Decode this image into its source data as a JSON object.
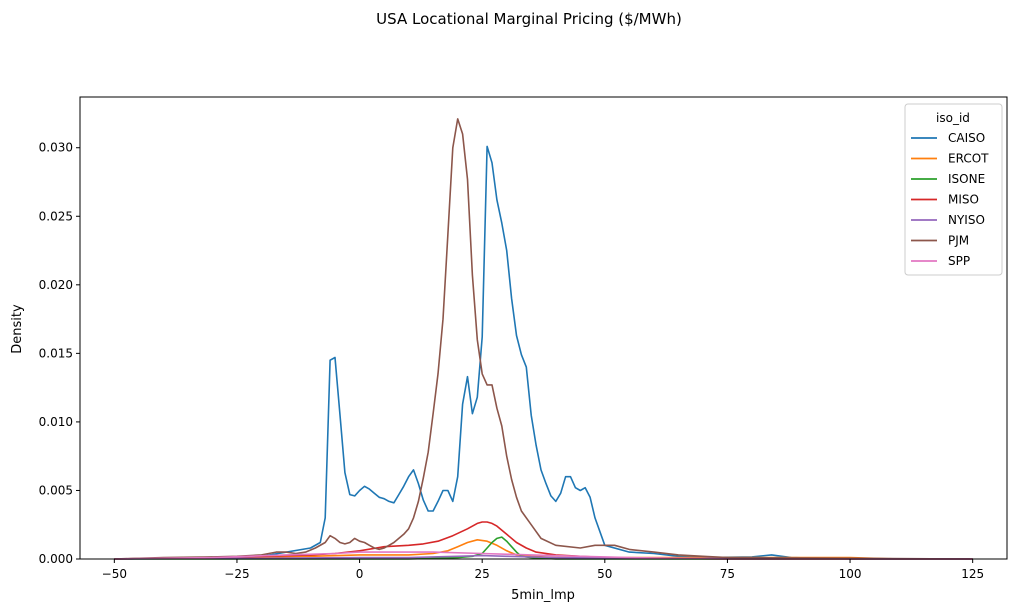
{
  "chart_data": {
    "type": "line",
    "title": "USA Locational Marginal Pricing ($/MWh)",
    "xlabel": "5min_lmp",
    "ylabel": "Density",
    "xlim": [
      -57,
      132
    ],
    "ylim": [
      0,
      0.0337
    ],
    "x_ticks": [
      -50,
      -25,
      0,
      25,
      50,
      75,
      100,
      125
    ],
    "y_ticks": [
      0.0,
      0.005,
      0.01,
      0.015,
      0.02,
      0.025,
      0.03
    ],
    "y_tick_labels": [
      "0.000",
      "0.005",
      "0.010",
      "0.015",
      "0.020",
      "0.025",
      "0.030"
    ],
    "grid": false,
    "legend": {
      "title": "iso_id",
      "placement": "top-right"
    },
    "series": [
      {
        "name": "CAISO",
        "color": "#1f77b4",
        "x": [
          -50,
          -20,
          -10,
          -8,
          -7,
          -6,
          -5,
          -4,
          -3,
          -2,
          -1,
          0,
          1,
          2,
          3,
          4,
          5,
          6,
          7,
          8,
          9,
          10,
          11,
          12,
          13,
          14,
          15,
          16,
          17,
          18,
          19,
          20,
          21,
          22,
          23,
          24,
          25,
          26,
          27,
          28,
          29,
          30,
          31,
          32,
          33,
          34,
          35,
          36,
          37,
          38,
          39,
          40,
          41,
          42,
          43,
          44,
          45,
          46,
          47,
          48,
          50,
          55,
          60,
          65,
          70,
          80,
          84,
          88,
          100,
          125
        ],
        "y": [
          0,
          0.0002,
          0.0008,
          0.0012,
          0.003,
          0.0145,
          0.0147,
          0.0105,
          0.0063,
          0.0047,
          0.0046,
          0.005,
          0.0053,
          0.0051,
          0.0048,
          0.0045,
          0.0044,
          0.0042,
          0.0041,
          0.0047,
          0.0053,
          0.006,
          0.0065,
          0.0055,
          0.0043,
          0.0035,
          0.0035,
          0.0042,
          0.005,
          0.005,
          0.0042,
          0.006,
          0.0113,
          0.0133,
          0.0106,
          0.0118,
          0.0162,
          0.0301,
          0.0289,
          0.0262,
          0.0245,
          0.0225,
          0.019,
          0.0163,
          0.0149,
          0.014,
          0.0105,
          0.0083,
          0.0065,
          0.0055,
          0.0046,
          0.0042,
          0.0048,
          0.006,
          0.006,
          0.0052,
          0.005,
          0.0052,
          0.0045,
          0.003,
          0.001,
          0.0005,
          0.0004,
          0.0002,
          0.0001,
          0.00015,
          0.0003,
          0.0001,
          0,
          0
        ]
      },
      {
        "name": "ERCOT",
        "color": "#ff7f0e",
        "x": [
          -50,
          -30,
          -10,
          0,
          10,
          15,
          18,
          20,
          22,
          24,
          26,
          28,
          30,
          32,
          35,
          40,
          50,
          70,
          90,
          100,
          110,
          125
        ],
        "y": [
          0,
          0.0001,
          0.0002,
          0.0003,
          0.0003,
          0.0004,
          0.0006,
          0.0009,
          0.0012,
          0.0014,
          0.0013,
          0.001,
          0.0006,
          0.0003,
          0.0002,
          0.0001,
          0.0001,
          0.0001,
          0.0001,
          0.0001,
          0,
          0
        ]
      },
      {
        "name": "ISONE",
        "color": "#2ca02c",
        "x": [
          -50,
          10,
          20,
          23,
          25,
          26,
          27,
          28,
          29,
          30,
          31,
          32,
          33,
          35,
          40,
          125
        ],
        "y": [
          0,
          0,
          0.0001,
          0.0002,
          0.0004,
          0.0008,
          0.0012,
          0.0015,
          0.0016,
          0.0013,
          0.0009,
          0.0005,
          0.0002,
          0.0001,
          0,
          0
        ]
      },
      {
        "name": "MISO",
        "color": "#d62728",
        "x": [
          -50,
          -30,
          -20,
          -10,
          -5,
          0,
          5,
          10,
          13,
          16,
          19,
          22,
          24,
          25,
          26,
          27,
          28,
          30,
          32,
          34,
          36,
          40,
          45,
          50,
          60,
          75,
          125
        ],
        "y": [
          0,
          0.0001,
          0.0002,
          0.0003,
          0.0004,
          0.0006,
          0.0009,
          0.001,
          0.0011,
          0.0013,
          0.0017,
          0.0022,
          0.0026,
          0.0027,
          0.0027,
          0.0026,
          0.0024,
          0.0018,
          0.0012,
          0.0008,
          0.0005,
          0.0003,
          0.0002,
          0.0001,
          5e-05,
          0,
          0
        ]
      },
      {
        "name": "NYISO",
        "color": "#9467bd",
        "x": [
          -50,
          -20,
          0,
          10,
          20,
          25,
          30,
          40,
          60,
          125
        ],
        "y": [
          0,
          5e-05,
          0.0001,
          0.0001,
          0.0002,
          0.00025,
          0.0002,
          0.0001,
          5e-05,
          0
        ]
      },
      {
        "name": "PJM",
        "color": "#8c564b",
        "x": [
          -50,
          -40,
          -30,
          -25,
          -20,
          -17,
          -15,
          -13,
          -11,
          -9,
          -7,
          -6,
          -5,
          -4,
          -3,
          -2,
          -1,
          0,
          1,
          2,
          3,
          4,
          5,
          6,
          7,
          8,
          9,
          10,
          11,
          12,
          13,
          14,
          15,
          16,
          17,
          18,
          19,
          20,
          21,
          22,
          23,
          24,
          25,
          26,
          27,
          28,
          29,
          30,
          31,
          32,
          33,
          35,
          37,
          40,
          45,
          48,
          50,
          52,
          55,
          60,
          65,
          70,
          75,
          125
        ],
        "y": [
          0,
          0.0001,
          0.00015,
          0.0002,
          0.0003,
          0.0005,
          0.0005,
          0.0004,
          0.0005,
          0.0008,
          0.0012,
          0.0017,
          0.0015,
          0.0012,
          0.0011,
          0.0012,
          0.0015,
          0.0013,
          0.0012,
          0.001,
          0.0008,
          0.0007,
          0.0008,
          0.001,
          0.0012,
          0.0015,
          0.0018,
          0.0022,
          0.003,
          0.0042,
          0.0059,
          0.0078,
          0.0106,
          0.0135,
          0.0175,
          0.0237,
          0.03,
          0.0321,
          0.031,
          0.0277,
          0.0207,
          0.016,
          0.0135,
          0.0127,
          0.0127,
          0.011,
          0.0097,
          0.0075,
          0.0058,
          0.0045,
          0.0035,
          0.0025,
          0.0015,
          0.001,
          0.0008,
          0.001,
          0.001,
          0.001,
          0.0007,
          0.0005,
          0.0003,
          0.0002,
          0.0001,
          0
        ]
      },
      {
        "name": "SPP",
        "color": "#e377c2",
        "x": [
          -50,
          -30,
          -15,
          -5,
          0,
          5,
          15,
          25,
          35,
          45,
          55,
          65,
          75,
          125
        ],
        "y": [
          0,
          0.0001,
          0.0003,
          0.0004,
          0.0005,
          0.0005,
          0.0005,
          0.0004,
          0.0003,
          0.0002,
          0.0001,
          5e-05,
          0,
          0
        ]
      }
    ]
  }
}
